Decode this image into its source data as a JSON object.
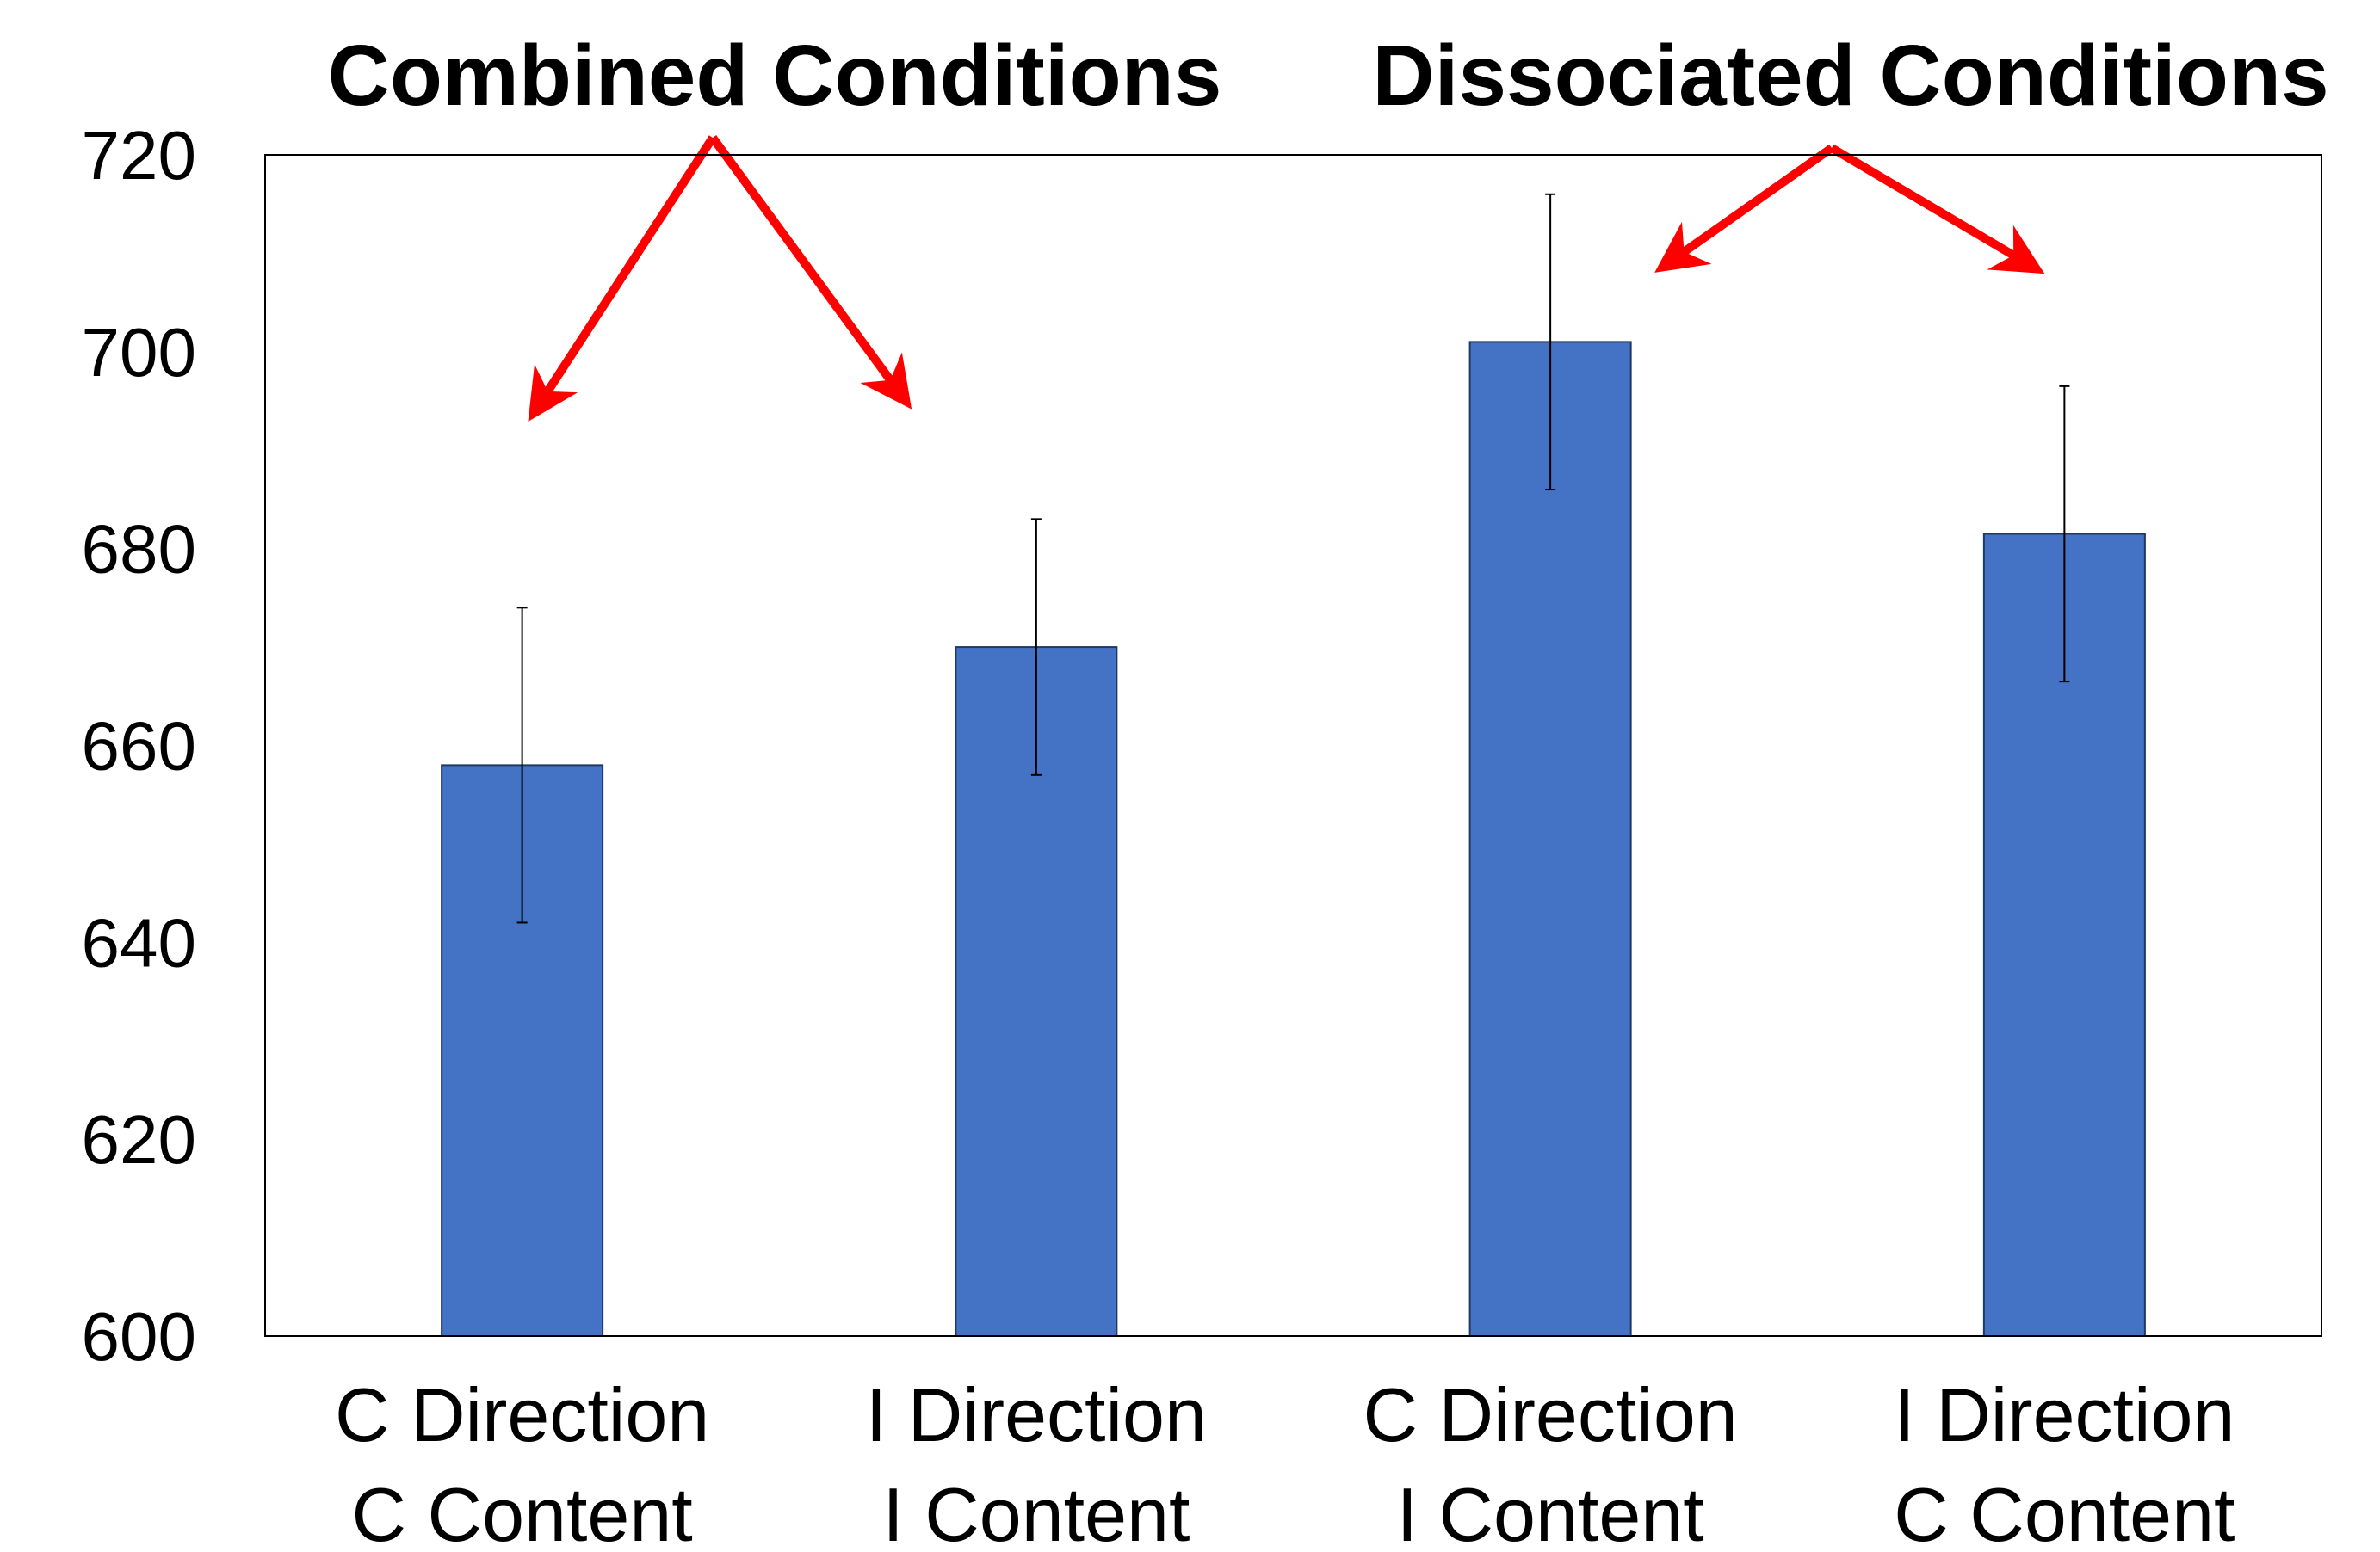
{
  "chart_data": {
    "type": "bar",
    "categories": [
      [
        "C Direction",
        "C Content"
      ],
      [
        "I Direction",
        "I Content"
      ],
      [
        "C Direction",
        "I Content"
      ],
      [
        "I Direction",
        "C Content"
      ]
    ],
    "values": [
      658,
      670,
      701,
      681.5
    ],
    "error": [
      16,
      13,
      15,
      15
    ],
    "ylim": [
      600,
      720
    ],
    "yticks": [
      600,
      620,
      640,
      660,
      680,
      700,
      720
    ],
    "title": "",
    "xlabel": "",
    "ylabel": "",
    "grid": false,
    "annotations": [
      {
        "text": "Combined Conditions",
        "categories": [
          0,
          1
        ]
      },
      {
        "text": "Dissociated Conditions",
        "categories": [
          2,
          3
        ]
      }
    ],
    "colors": {
      "bar": "#4472C4",
      "bar_edge": "#1F3864",
      "arrow": "#FF0000",
      "axis": "#000000"
    }
  }
}
